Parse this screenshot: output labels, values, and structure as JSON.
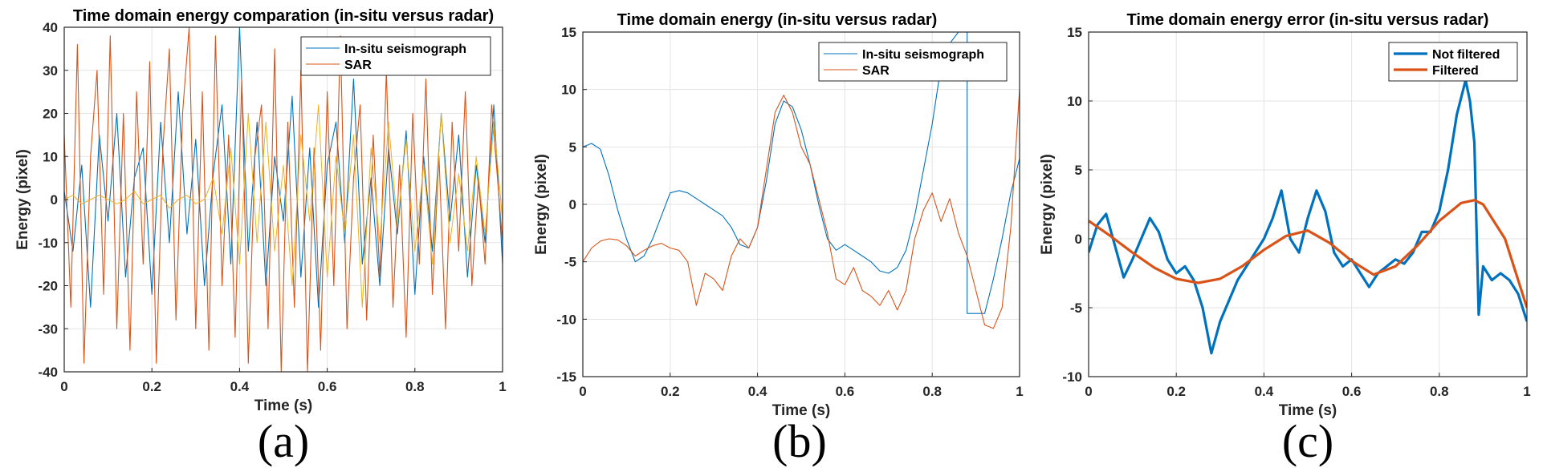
{
  "chart_data": [
    {
      "type": "line",
      "panel_label": "(a)",
      "title": "Time domain energy comparation (in-situ versus radar)",
      "xlabel": "Time (s)",
      "ylabel": "Energy (pixel)",
      "xlim": [
        0,
        1
      ],
      "ylim": [
        -40,
        40
      ],
      "xticks": [
        0,
        0.2,
        0.4,
        0.6,
        0.8,
        1
      ],
      "xticklabels": [
        "0",
        "0.2",
        "0.4",
        "0.6",
        "0.8",
        "1"
      ],
      "yticks": [
        -40,
        -30,
        -20,
        -10,
        0,
        10,
        20,
        30,
        40
      ],
      "yticklabels": [
        "-40",
        "-30",
        "-20",
        "-10",
        "0",
        "10",
        "20",
        "30",
        "40"
      ],
      "grid": true,
      "legend_location": "top-right",
      "legend": [
        "In-situ seismograph",
        "SAR"
      ],
      "series": [
        {
          "name": "In-situ seismograph",
          "color": "#0072BD",
          "line_width": 1.1,
          "x": [
            0,
            0.02,
            0.04,
            0.06,
            0.08,
            0.1,
            0.12,
            0.14,
            0.16,
            0.18,
            0.2,
            0.22,
            0.24,
            0.26,
            0.28,
            0.3,
            0.32,
            0.34,
            0.36,
            0.38,
            0.4,
            0.42,
            0.44,
            0.46,
            0.48,
            0.5,
            0.52,
            0.54,
            0.56,
            0.58,
            0.6,
            0.62,
            0.64,
            0.66,
            0.68,
            0.7,
            0.72,
            0.74,
            0.76,
            0.78,
            0.8,
            0.82,
            0.84,
            0.86,
            0.88,
            0.9,
            0.92,
            0.94,
            0.96,
            0.98,
            1
          ],
          "y": [
            2,
            -12,
            8,
            -25,
            15,
            -5,
            20,
            -18,
            5,
            12,
            -22,
            18,
            -10,
            25,
            -8,
            14,
            -20,
            6,
            22,
            -15,
            40,
            -12,
            18,
            -20,
            10,
            -5,
            24,
            -18,
            12,
            -25,
            8,
            18,
            -10,
            28,
            -15,
            5,
            -20,
            12,
            -8,
            16,
            -22,
            10,
            -12,
            20,
            -5,
            15,
            -18,
            8,
            -10,
            22,
            -15
          ]
        },
        {
          "name": "SAR",
          "color": "#D95319",
          "line_width": 1.1,
          "x": [
            0,
            0.015,
            0.03,
            0.045,
            0.06,
            0.075,
            0.09,
            0.105,
            0.12,
            0.135,
            0.15,
            0.165,
            0.18,
            0.195,
            0.21,
            0.225,
            0.24,
            0.255,
            0.27,
            0.285,
            0.3,
            0.315,
            0.33,
            0.345,
            0.36,
            0.375,
            0.39,
            0.405,
            0.42,
            0.435,
            0.45,
            0.465,
            0.48,
            0.495,
            0.51,
            0.525,
            0.54,
            0.555,
            0.57,
            0.585,
            0.6,
            0.615,
            0.63,
            0.645,
            0.66,
            0.675,
            0.69,
            0.705,
            0.72,
            0.735,
            0.75,
            0.765,
            0.78,
            0.795,
            0.81,
            0.825,
            0.84,
            0.855,
            0.87,
            0.885,
            0.9,
            0.915,
            0.93,
            0.945,
            0.96,
            0.975,
            1
          ],
          "y": [
            15,
            -25,
            36,
            -38,
            10,
            30,
            -22,
            38,
            -30,
            20,
            -35,
            25,
            -15,
            32,
            -38,
            12,
            35,
            -28,
            20,
            40,
            -30,
            25,
            -35,
            38,
            -20,
            15,
            -32,
            28,
            -38,
            10,
            22,
            -30,
            35,
            -40,
            18,
            -25,
            30,
            -40,
            12,
            -35,
            25,
            -20,
            38,
            -30,
            5,
            22,
            -28,
            15,
            -18,
            30,
            -25,
            8,
            -32,
            20,
            -15,
            28,
            -22,
            10,
            -30,
            18,
            -12,
            25,
            -20,
            5,
            -15,
            22,
            -10
          ]
        },
        {
          "name": "",
          "color": "#EDB120",
          "line_width": 1.0,
          "x": [
            0,
            0.02,
            0.04,
            0.06,
            0.08,
            0.1,
            0.12,
            0.14,
            0.16,
            0.18,
            0.2,
            0.22,
            0.24,
            0.26,
            0.28,
            0.3,
            0.32,
            0.34,
            0.36,
            0.38,
            0.4,
            0.42,
            0.44,
            0.46,
            0.48,
            0.5,
            0.52,
            0.54,
            0.56,
            0.58,
            0.6,
            0.62,
            0.64,
            0.66,
            0.68,
            0.7,
            0.72,
            0.74,
            0.76,
            0.78,
            0.8,
            0.82,
            0.84,
            0.86,
            0.88,
            0.9,
            0.92,
            0.94,
            0.96,
            0.98,
            1
          ],
          "y": [
            0,
            1,
            -1,
            0,
            1,
            0,
            -1,
            0,
            2,
            -1,
            0,
            1,
            -2,
            0,
            1,
            -1,
            0,
            5,
            -8,
            12,
            -15,
            20,
            -10,
            18,
            -12,
            8,
            -20,
            15,
            -5,
            22,
            -18,
            10,
            -8,
            15,
            -25,
            12,
            -10,
            18,
            -6,
            14,
            -12,
            8,
            -15,
            20,
            -10,
            6,
            -12,
            10,
            -8,
            18,
            -5
          ]
        }
      ]
    },
    {
      "type": "line",
      "panel_label": "(b)",
      "title": "Time domain energy (in-situ versus radar)",
      "xlabel": "Time (s)",
      "ylabel": "Energy (pixel)",
      "xlim": [
        0,
        1
      ],
      "ylim": [
        -15,
        15
      ],
      "xticks": [
        0,
        0.2,
        0.4,
        0.6,
        0.8,
        1
      ],
      "xticklabels": [
        "0",
        "0.2",
        "0.4",
        "0.6",
        "0.8",
        "1"
      ],
      "yticks": [
        -15,
        -10,
        -5,
        0,
        5,
        10,
        15
      ],
      "yticklabels": [
        "-15",
        "-10",
        "-5",
        "0",
        "5",
        "10",
        "15"
      ],
      "grid": true,
      "legend_location": "top-right",
      "legend": [
        "In-situ seismograph",
        "SAR"
      ],
      "series": [
        {
          "name": "In-situ seismograph",
          "color": "#0072BD",
          "line_width": 1.1,
          "x": [
            0,
            0.02,
            0.04,
            0.06,
            0.08,
            0.1,
            0.12,
            0.14,
            0.16,
            0.18,
            0.2,
            0.22,
            0.24,
            0.26,
            0.28,
            0.3,
            0.32,
            0.34,
            0.36,
            0.38,
            0.4,
            0.42,
            0.44,
            0.46,
            0.48,
            0.5,
            0.52,
            0.54,
            0.56,
            0.58,
            0.6,
            0.62,
            0.64,
            0.66,
            0.68,
            0.7,
            0.72,
            0.74,
            0.76,
            0.78,
            0.8,
            0.82,
            0.84,
            0.86,
            0.88,
            0.88,
            0.9,
            0.92,
            0.94,
            0.96,
            0.98,
            1
          ],
          "y": [
            5,
            5.3,
            4.8,
            2.5,
            -0.5,
            -3,
            -5,
            -4.5,
            -3,
            -1,
            1,
            1.2,
            1,
            0.5,
            0,
            -0.5,
            -1,
            -2,
            -3.5,
            -3.8,
            -2,
            2,
            7,
            9,
            8.5,
            6.5,
            3.5,
            0,
            -3,
            -4,
            -3.5,
            -4,
            -4.5,
            -5,
            -5.8,
            -6,
            -5.5,
            -4,
            -1,
            3,
            7,
            12,
            14,
            15,
            15,
            -9.5,
            -9.5,
            -9.5,
            -6.5,
            -3,
            1,
            4
          ]
        },
        {
          "name": "SAR",
          "color": "#D95319",
          "line_width": 1.1,
          "x": [
            0,
            0.02,
            0.04,
            0.06,
            0.08,
            0.1,
            0.12,
            0.14,
            0.16,
            0.18,
            0.2,
            0.22,
            0.24,
            0.26,
            0.28,
            0.3,
            0.32,
            0.34,
            0.36,
            0.38,
            0.4,
            0.42,
            0.44,
            0.46,
            0.48,
            0.5,
            0.52,
            0.54,
            0.56,
            0.58,
            0.6,
            0.62,
            0.64,
            0.66,
            0.68,
            0.7,
            0.72,
            0.74,
            0.76,
            0.78,
            0.8,
            0.82,
            0.84,
            0.86,
            0.88,
            0.9,
            0.92,
            0.94,
            0.96,
            0.98,
            1
          ],
          "y": [
            -5,
            -3.8,
            -3.2,
            -3,
            -3.1,
            -3.6,
            -4.5,
            -4,
            -3.6,
            -3.4,
            -3.8,
            -4,
            -5,
            -8.8,
            -6,
            -6.5,
            -7.5,
            -4.5,
            -3,
            -3.8,
            -2,
            3,
            8,
            9.5,
            8,
            5,
            3.5,
            0.5,
            -2.5,
            -6.5,
            -7,
            -5.5,
            -7.5,
            -8,
            -8.8,
            -7.5,
            -9.2,
            -7.5,
            -3,
            -0.5,
            1,
            -1.5,
            0.5,
            -2.5,
            -4.5,
            -7.5,
            -10.5,
            -10.8,
            -9,
            -2,
            10
          ]
        }
      ]
    },
    {
      "type": "line",
      "panel_label": "(c)",
      "title": "Time domain energy error (in-situ versus radar)",
      "xlabel": "Time (s)",
      "ylabel": "Energy (pixel)",
      "xlim": [
        0,
        1
      ],
      "ylim": [
        -10,
        15
      ],
      "xticks": [
        0,
        0.2,
        0.4,
        0.6,
        0.8,
        1
      ],
      "xticklabels": [
        "0",
        "0.2",
        "0.4",
        "0.6",
        "0.8",
        "1"
      ],
      "yticks": [
        -10,
        -5,
        0,
        5,
        10,
        15
      ],
      "yticklabels": [
        "-10",
        "-5",
        "0",
        "5",
        "10",
        "15"
      ],
      "grid": true,
      "legend_location": "top-right",
      "legend": [
        "Not filtered",
        "Filtered"
      ],
      "series": [
        {
          "name": "Not filtered",
          "color": "#0072BD",
          "line_width": 3.2,
          "x": [
            0,
            0.02,
            0.04,
            0.06,
            0.08,
            0.1,
            0.12,
            0.14,
            0.16,
            0.18,
            0.2,
            0.22,
            0.24,
            0.26,
            0.28,
            0.3,
            0.32,
            0.34,
            0.36,
            0.38,
            0.4,
            0.42,
            0.44,
            0.46,
            0.48,
            0.5,
            0.52,
            0.54,
            0.56,
            0.58,
            0.6,
            0.62,
            0.64,
            0.66,
            0.68,
            0.7,
            0.72,
            0.74,
            0.76,
            0.78,
            0.8,
            0.82,
            0.84,
            0.86,
            0.87,
            0.88,
            0.89,
            0.9,
            0.92,
            0.94,
            0.96,
            0.98,
            1
          ],
          "y": [
            -1,
            1,
            1.8,
            -0.5,
            -2.8,
            -1.5,
            0,
            1.5,
            0.5,
            -1.5,
            -2.5,
            -2,
            -3,
            -5,
            -8.3,
            -6,
            -4.5,
            -3,
            -2,
            -1,
            0,
            1.5,
            3.5,
            0,
            -1,
            1.5,
            3.5,
            2,
            -1,
            -2,
            -1.5,
            -2.5,
            -3.5,
            -2.5,
            -2,
            -1.5,
            -1.8,
            -1,
            0.5,
            0.5,
            2,
            5,
            9,
            11.5,
            10,
            7,
            -5.5,
            -2,
            -3,
            -2.5,
            -3,
            -4,
            -6
          ]
        },
        {
          "name": "Filtered",
          "color": "#D95319",
          "line_width": 3.2,
          "x": [
            0,
            0.05,
            0.1,
            0.15,
            0.2,
            0.25,
            0.3,
            0.35,
            0.4,
            0.45,
            0.5,
            0.55,
            0.6,
            0.65,
            0.7,
            0.75,
            0.8,
            0.85,
            0.88,
            0.9,
            0.95,
            1
          ],
          "y": [
            1.3,
            0.2,
            -1,
            -2.1,
            -2.9,
            -3.2,
            -2.9,
            -2,
            -0.8,
            0.2,
            0.6,
            -0.3,
            -1.6,
            -2.6,
            -2,
            -0.5,
            1.3,
            2.6,
            2.8,
            2.5,
            0,
            -5
          ]
        }
      ]
    }
  ]
}
